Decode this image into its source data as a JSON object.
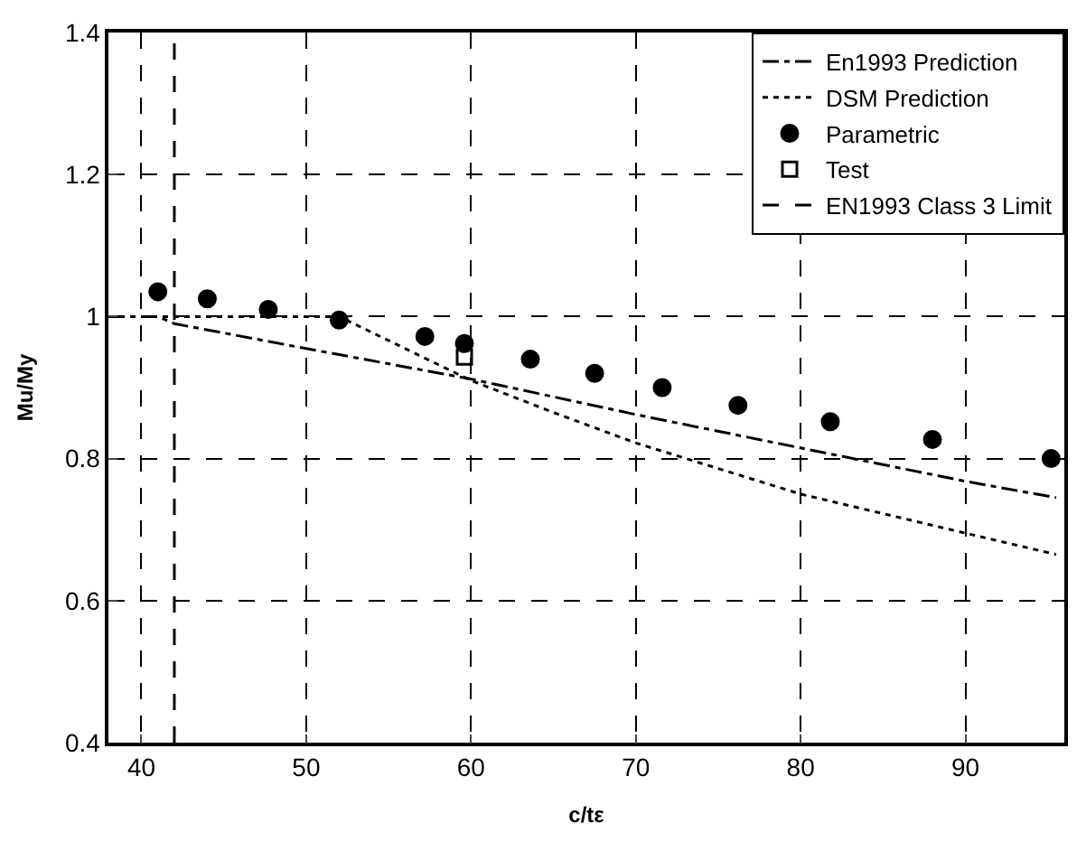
{
  "chart_data": {
    "type": "line",
    "xlabel": "c/tε",
    "ylabel": "Mu/My",
    "xlim": [
      38,
      96
    ],
    "ylim": [
      0.4,
      1.4
    ],
    "xticks": [
      40,
      50,
      60,
      70,
      80,
      90
    ],
    "yticks": [
      0.4,
      0.6,
      0.8,
      1,
      1.2,
      1.4
    ],
    "grid": true,
    "legend": "top right",
    "series": [
      {
        "name": "En1993 Prediction",
        "line_style": "dashdot",
        "color": "#000000",
        "x": [
          38,
          41,
          42,
          50,
          60,
          70,
          80,
          90,
          95.5
        ],
        "values": [
          1,
          1,
          0.99,
          0.955,
          0.912,
          0.862,
          0.815,
          0.768,
          0.745
        ]
      },
      {
        "name": "DSM Prediction",
        "line_style": "dotted",
        "color": "#000000",
        "x": [
          38,
          52,
          60,
          65,
          70,
          80,
          90,
          95.5
        ],
        "values": [
          1,
          1,
          0.91,
          0.865,
          0.822,
          0.75,
          0.695,
          0.665
        ]
      },
      {
        "name": "Parametric",
        "type": "scatter",
        "marker": "circle",
        "color": "#000000",
        "x": [
          41,
          44,
          47.7,
          52,
          57.2,
          59.6,
          63.6,
          67.5,
          71.6,
          76.2,
          81.8,
          88,
          95.2
        ],
        "values": [
          1.035,
          1.025,
          1.01,
          0.995,
          0.972,
          0.962,
          0.94,
          0.92,
          0.9,
          0.875,
          0.852,
          0.827,
          0.8
        ]
      },
      {
        "name": "Test",
        "type": "scatter",
        "marker": "square",
        "color": "#000000",
        "x": [
          59.6
        ],
        "values": [
          0.943
        ]
      },
      {
        "name": "EN1993 Class 3 Limit",
        "line_style": "dashed",
        "color": "#000000",
        "x": [
          42,
          42
        ],
        "values": [
          0.4,
          1.4
        ]
      }
    ]
  }
}
